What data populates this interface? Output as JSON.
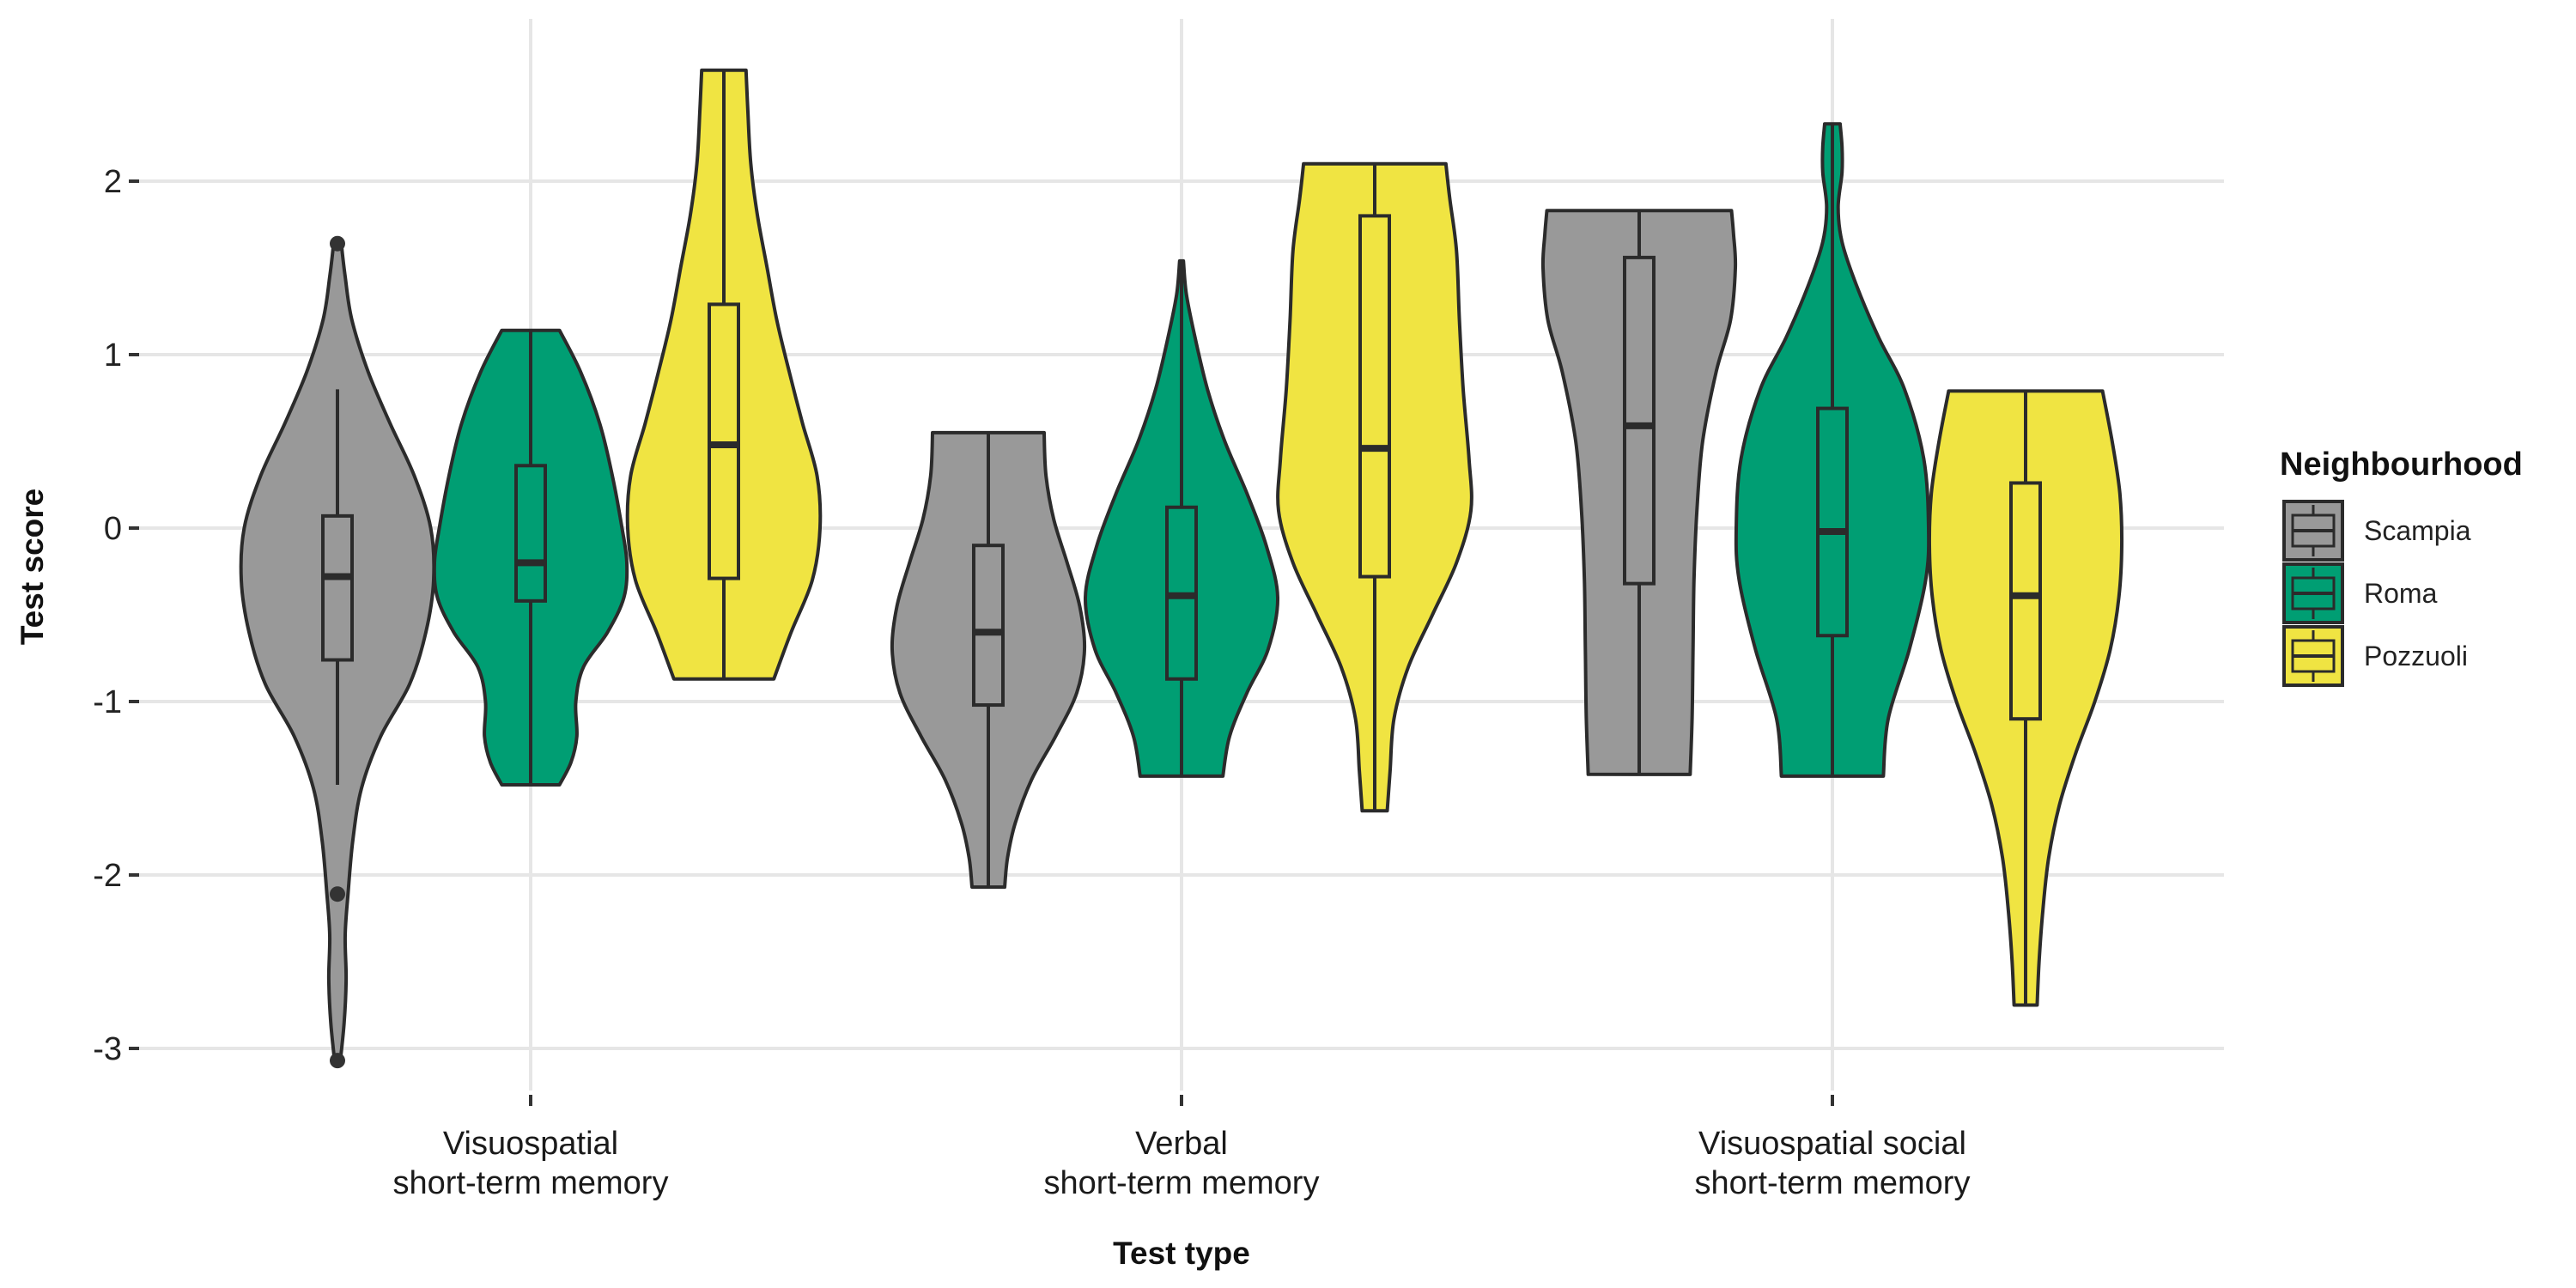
{
  "chart_data": {
    "type": "violin",
    "xlabel": "Test type",
    "ylabel": "Test score",
    "ylim": [
      -3.3,
      2.85
    ],
    "yticks": [
      -3,
      -2,
      -1,
      0,
      1,
      2
    ],
    "ytick_labels": [
      "-3",
      "-2",
      "-1",
      "0",
      "1",
      "2"
    ],
    "grid": true,
    "legend": {
      "title": "Neighbourhood",
      "position": "right"
    },
    "categories": [
      {
        "line1": "Visuospatial",
        "line2": "short-term memory"
      },
      {
        "line1": "Verbal",
        "line2": "short-term memory"
      },
      {
        "line1": "Visuospatial social",
        "line2": "short-term memory"
      }
    ],
    "series": [
      {
        "name": "Scampia",
        "color": "#999999",
        "groups": [
          {
            "min": -3.07,
            "max": 1.64,
            "whisker_low": -1.48,
            "q1": -0.76,
            "median": -0.28,
            "q3": 0.07,
            "whisker_high": 0.8,
            "outliers": [
              1.64,
              -2.11,
              -3.07
            ],
            "density": [
              [
                -3.07,
                0.03
              ],
              [
                -2.85,
                0.07
              ],
              [
                -2.6,
                0.09
              ],
              [
                -2.35,
                0.08
              ],
              [
                -2.11,
                0.11
              ],
              [
                -1.8,
                0.16
              ],
              [
                -1.5,
                0.25
              ],
              [
                -1.2,
                0.45
              ],
              [
                -0.9,
                0.75
              ],
              [
                -0.6,
                0.92
              ],
              [
                -0.3,
                1.0
              ],
              [
                0.0,
                0.97
              ],
              [
                0.3,
                0.8
              ],
              [
                0.6,
                0.55
              ],
              [
                0.9,
                0.32
              ],
              [
                1.2,
                0.15
              ],
              [
                1.45,
                0.08
              ],
              [
                1.64,
                0.04
              ]
            ]
          },
          {
            "min": -2.07,
            "max": 0.55,
            "whisker_low": -2.07,
            "q1": -1.02,
            "median": -0.6,
            "q3": -0.1,
            "whisker_high": 0.55,
            "outliers": [],
            "density": [
              [
                -2.07,
                0.17
              ],
              [
                -1.9,
                0.2
              ],
              [
                -1.7,
                0.28
              ],
              [
                -1.45,
                0.45
              ],
              [
                -1.2,
                0.7
              ],
              [
                -0.95,
                0.92
              ],
              [
                -0.7,
                1.0
              ],
              [
                -0.45,
                0.95
              ],
              [
                -0.2,
                0.82
              ],
              [
                0.05,
                0.68
              ],
              [
                0.3,
                0.6
              ],
              [
                0.55,
                0.58
              ]
            ]
          },
          {
            "min": -1.42,
            "max": 1.83,
            "whisker_low": -1.42,
            "q1": -0.32,
            "median": 0.59,
            "q3": 1.56,
            "whisker_high": 1.83,
            "outliers": [],
            "density": [
              [
                -1.42,
                0.53
              ],
              [
                -1.1,
                0.55
              ],
              [
                -0.7,
                0.56
              ],
              [
                -0.3,
                0.57
              ],
              [
                0.1,
                0.6
              ],
              [
                0.5,
                0.66
              ],
              [
                0.9,
                0.8
              ],
              [
                1.2,
                0.95
              ],
              [
                1.5,
                1.0
              ],
              [
                1.7,
                0.98
              ],
              [
                1.83,
                0.96
              ]
            ]
          }
        ]
      },
      {
        "name": "Roma",
        "color": "#009e73",
        "groups": [
          {
            "min": -1.48,
            "max": 1.14,
            "whisker_low": -1.48,
            "q1": -0.42,
            "median": -0.2,
            "q3": 0.36,
            "whisker_high": 1.14,
            "outliers": [],
            "density": [
              [
                -1.48,
                0.3
              ],
              [
                -1.35,
                0.42
              ],
              [
                -1.2,
                0.48
              ],
              [
                -1.0,
                0.47
              ],
              [
                -0.8,
                0.55
              ],
              [
                -0.6,
                0.8
              ],
              [
                -0.4,
                0.97
              ],
              [
                -0.2,
                1.0
              ],
              [
                0.0,
                0.95
              ],
              [
                0.3,
                0.85
              ],
              [
                0.6,
                0.72
              ],
              [
                0.9,
                0.52
              ],
              [
                1.14,
                0.3
              ]
            ]
          },
          {
            "min": -1.43,
            "max": 1.54,
            "whisker_low": -1.43,
            "q1": -0.87,
            "median": -0.39,
            "q3": 0.12,
            "whisker_high": 1.54,
            "outliers": [],
            "density": [
              [
                -1.43,
                0.43
              ],
              [
                -1.2,
                0.5
              ],
              [
                -0.95,
                0.68
              ],
              [
                -0.7,
                0.9
              ],
              [
                -0.4,
                1.0
              ],
              [
                -0.1,
                0.88
              ],
              [
                0.2,
                0.68
              ],
              [
                0.5,
                0.45
              ],
              [
                0.8,
                0.27
              ],
              [
                1.1,
                0.14
              ],
              [
                1.35,
                0.05
              ],
              [
                1.54,
                0.02
              ]
            ]
          },
          {
            "min": -1.43,
            "max": 2.33,
            "whisker_low": -1.43,
            "q1": -0.62,
            "median": -0.02,
            "q3": 0.69,
            "whisker_high": 2.33,
            "outliers": [],
            "density": [
              [
                -1.43,
                0.53
              ],
              [
                -1.1,
                0.58
              ],
              [
                -0.7,
                0.8
              ],
              [
                -0.3,
                0.97
              ],
              [
                0.0,
                1.0
              ],
              [
                0.4,
                0.95
              ],
              [
                0.8,
                0.75
              ],
              [
                1.1,
                0.48
              ],
              [
                1.4,
                0.25
              ],
              [
                1.65,
                0.1
              ],
              [
                1.85,
                0.06
              ],
              [
                2.05,
                0.1
              ],
              [
                2.2,
                0.1
              ],
              [
                2.33,
                0.08
              ]
            ]
          }
        ]
      },
      {
        "name": "Pozzuoli",
        "color": "#f0e442",
        "groups": [
          {
            "min": -0.87,
            "max": 2.64,
            "whisker_low": -0.87,
            "q1": -0.29,
            "median": 0.48,
            "q3": 1.29,
            "whisker_high": 2.64,
            "outliers": [],
            "density": [
              [
                -0.87,
                0.52
              ],
              [
                -0.6,
                0.7
              ],
              [
                -0.3,
                0.92
              ],
              [
                0.0,
                1.0
              ],
              [
                0.3,
                0.97
              ],
              [
                0.6,
                0.82
              ],
              [
                0.9,
                0.68
              ],
              [
                1.2,
                0.55
              ],
              [
                1.5,
                0.45
              ],
              [
                1.8,
                0.35
              ],
              [
                2.1,
                0.28
              ],
              [
                2.4,
                0.25
              ],
              [
                2.64,
                0.23
              ]
            ]
          },
          {
            "min": -1.63,
            "max": 2.1,
            "whisker_low": -1.63,
            "q1": -0.28,
            "median": 0.46,
            "q3": 1.8,
            "whisker_high": 2.1,
            "outliers": [],
            "density": [
              [
                -1.63,
                0.13
              ],
              [
                -1.4,
                0.16
              ],
              [
                -1.1,
                0.2
              ],
              [
                -0.8,
                0.35
              ],
              [
                -0.5,
                0.6
              ],
              [
                -0.2,
                0.85
              ],
              [
                0.1,
                1.0
              ],
              [
                0.4,
                0.98
              ],
              [
                0.8,
                0.92
              ],
              [
                1.2,
                0.88
              ],
              [
                1.6,
                0.85
              ],
              [
                1.9,
                0.78
              ],
              [
                2.1,
                0.74
              ]
            ]
          },
          {
            "min": -2.75,
            "max": 0.79,
            "whisker_low": -2.75,
            "q1": -1.1,
            "median": -0.39,
            "q3": 0.26,
            "whisker_high": 0.79,
            "outliers": [],
            "density": [
              [
                -2.75,
                0.12
              ],
              [
                -2.5,
                0.14
              ],
              [
                -2.2,
                0.18
              ],
              [
                -1.9,
                0.24
              ],
              [
                -1.6,
                0.35
              ],
              [
                -1.3,
                0.52
              ],
              [
                -1.0,
                0.72
              ],
              [
                -0.7,
                0.88
              ],
              [
                -0.4,
                0.97
              ],
              [
                -0.1,
                1.0
              ],
              [
                0.2,
                0.98
              ],
              [
                0.5,
                0.9
              ],
              [
                0.79,
                0.8
              ]
            ]
          }
        ]
      }
    ]
  }
}
